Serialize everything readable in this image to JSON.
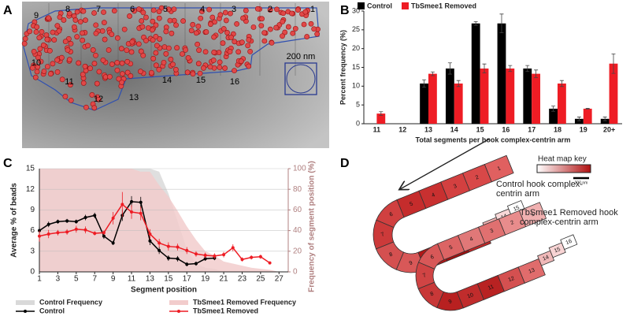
{
  "panel_labels": [
    "A",
    "B",
    "C",
    "D"
  ],
  "image_a": {
    "segment_labels": [
      "1",
      "2",
      "3",
      "4",
      "5",
      "6",
      "7",
      "8",
      "9",
      "10",
      "11",
      "12",
      "13",
      "14",
      "15",
      "16"
    ],
    "scale_label": "200 nm"
  },
  "chart_data": [
    {
      "type": "bar",
      "ylabel": "Percent frequency (%)",
      "xlabel": "Total segments per hook complex-centrin arm",
      "categories": [
        "11",
        "12",
        "13",
        "14",
        "15",
        "16",
        "17",
        "18",
        "19",
        "20+"
      ],
      "ylim": [
        0,
        30
      ],
      "yticks": [
        0,
        5,
        10,
        15,
        20,
        25,
        30
      ],
      "legend": "top",
      "series": [
        {
          "name": "Control",
          "color": "#000000",
          "values": [
            0,
            0,
            10.7,
            14.7,
            26.7,
            26.7,
            14.7,
            4,
            1.3,
            1.3
          ],
          "errors": [
            null,
            null,
            1,
            1.5,
            0.5,
            2.5,
            0.8,
            0.7,
            0.5,
            0.5
          ]
        },
        {
          "name": "TbSmee1 Removed",
          "color": "#ee1c24",
          "values": [
            2.7,
            0,
            13.3,
            10.7,
            14.7,
            14.7,
            13.3,
            10.7,
            4,
            16
          ],
          "errors": [
            0.5,
            null,
            0.5,
            0.8,
            1.2,
            0.8,
            1,
            0.8,
            0.1,
            2.6
          ]
        }
      ]
    },
    {
      "type": "line",
      "ylabel": "Average % of beads",
      "y2label": "Frequency of segment position (%)",
      "xlabel": "Segment position",
      "xlim": [
        1,
        28
      ],
      "xticks": [
        1,
        3,
        5,
        7,
        9,
        11,
        13,
        15,
        17,
        19,
        21,
        23,
        25,
        27
      ],
      "ylim": [
        0,
        15
      ],
      "yticks": [
        0,
        3,
        6,
        9,
        12,
        15
      ],
      "y2lim": [
        0,
        100
      ],
      "y2ticks": [
        0,
        20,
        40,
        60,
        80,
        100
      ],
      "grid": true,
      "legend": "bottom",
      "series": [
        {
          "name": "Control Frequency",
          "color": "#d9d9d9",
          "axis": "y2",
          "style": "area",
          "x": [
            1,
            2,
            3,
            4,
            5,
            6,
            7,
            8,
            9,
            10,
            11,
            12,
            13,
            14,
            15,
            16,
            17,
            18,
            19,
            20,
            21
          ],
          "values": [
            100,
            100,
            100,
            100,
            100,
            100,
            100,
            100,
            100,
            100,
            100,
            100,
            100,
            97,
            76,
            49,
            22,
            8,
            4,
            3,
            0
          ]
        },
        {
          "name": "TbSmee1 Removed Frequency",
          "color": "#f2cccc",
          "axis": "y2",
          "style": "area",
          "x": [
            1,
            2,
            3,
            4,
            5,
            6,
            7,
            8,
            9,
            10,
            11,
            12,
            13,
            14,
            15,
            16,
            17,
            18,
            19,
            20,
            21,
            22,
            23,
            24,
            25,
            26,
            27
          ],
          "values": [
            100,
            100,
            100,
            100,
            100,
            100,
            100,
            100,
            100,
            100,
            100,
            97,
            97,
            84,
            73,
            59,
            44,
            31,
            20,
            16,
            10,
            8,
            6,
            4,
            3,
            2,
            0
          ]
        },
        {
          "name": "Control",
          "color": "#000000",
          "style": "line",
          "x": [
            1,
            2,
            3,
            4,
            5,
            6,
            7,
            8,
            9,
            10,
            11,
            12,
            13,
            14,
            15,
            16,
            17,
            18,
            19,
            20
          ],
          "values": [
            6.0,
            6.9,
            7.3,
            7.4,
            7.3,
            7.9,
            8.2,
            5.2,
            4.2,
            8.2,
            10.2,
            10.1,
            4.5,
            3.1,
            2.0,
            1.9,
            1.1,
            1.2,
            1.9,
            2.0
          ],
          "errors": [
            0.5,
            0.4,
            0.3,
            0.3,
            0.3,
            0.4,
            0.4,
            0.4,
            0.3,
            0.8,
            0.8,
            0.8,
            0.6,
            0.5,
            0.4,
            0.4,
            0.3,
            0.3,
            0.3,
            0.3
          ]
        },
        {
          "name": "TbSmee1 Removed",
          "color": "#ee1c24",
          "style": "line",
          "x": [
            1,
            2,
            3,
            4,
            5,
            6,
            7,
            8,
            9,
            10,
            11,
            12,
            13,
            14,
            15,
            16,
            17,
            18,
            19,
            20,
            21,
            22,
            23,
            24,
            25,
            26
          ],
          "values": [
            5.2,
            5.5,
            5.7,
            5.8,
            6.2,
            6.1,
            5.6,
            5.7,
            7.8,
            9.8,
            8.7,
            8.5,
            5.5,
            4.2,
            3.7,
            3.6,
            3.1,
            2.6,
            2.4,
            2.3,
            2.5,
            3.5,
            1.8,
            2.1,
            2.2,
            1.3
          ],
          "errors": [
            0.8,
            0.6,
            0.4,
            0.4,
            0.5,
            0.5,
            0.3,
            0.3,
            0.9,
            1.8,
            1.0,
            1.0,
            0.7,
            0.6,
            0.6,
            0.5,
            0.5,
            0.4,
            0.4,
            0.4,
            0.4,
            0.5,
            0.3,
            0.3,
            0.3,
            0.2
          ]
        }
      ]
    }
  ],
  "diagram_d": {
    "key_title": "Heat map key",
    "key_scale": "200 nm",
    "hooks": [
      {
        "label": "Control hook complex-centrin arm",
        "top": 5,
        "bottom": 3,
        "segments": [
          {
            "label": "1",
            "color": "#e06060"
          },
          {
            "label": "2",
            "color": "#d84848"
          },
          {
            "label": "3",
            "color": "#d34040"
          },
          {
            "label": "4",
            "color": "#c83030"
          },
          {
            "label": "5",
            "color": "#c52c2c"
          },
          {
            "label": "6",
            "color": "#d04040"
          },
          {
            "label": "7",
            "color": "#cc3a3a"
          },
          {
            "label": "8",
            "color": "#d45050"
          },
          {
            "label": "9",
            "color": "#d85858"
          },
          {
            "label": "10",
            "color": "#b01818"
          },
          {
            "label": "11",
            "color": "#a01010"
          },
          {
            "label": "12",
            "color": "#c02828"
          },
          {
            "label": "13",
            "color": "#f0b0b0"
          },
          {
            "label": "14",
            "color": "#f8d8d8"
          },
          {
            "label": "15",
            "color": "#ffffff"
          }
        ]
      },
      {
        "label": "TbSmee1 Removed hook complex-centrin arm",
        "top": 5,
        "bottom": 4,
        "segments": [
          {
            "label": "1",
            "color": "#f0b0b0"
          },
          {
            "label": "2",
            "color": "#e88c8c"
          },
          {
            "label": "3",
            "color": "#e07070"
          },
          {
            "label": "4",
            "color": "#e07878"
          },
          {
            "label": "5",
            "color": "#dc6464"
          },
          {
            "label": "6",
            "color": "#d85858"
          },
          {
            "label": "7",
            "color": "#d04444"
          },
          {
            "label": "8",
            "color": "#c83838"
          },
          {
            "label": "9",
            "color": "#b82020"
          },
          {
            "label": "10",
            "color": "#c02c2c"
          },
          {
            "label": "11",
            "color": "#b82222"
          },
          {
            "label": "12",
            "color": "#d45050"
          },
          {
            "label": "13",
            "color": "#e06c6c"
          },
          {
            "label": "14",
            "color": "#f0b8b8"
          },
          {
            "label": "15",
            "color": "#f8d4d4"
          },
          {
            "label": "16",
            "color": "#ffffff"
          }
        ]
      }
    ]
  }
}
